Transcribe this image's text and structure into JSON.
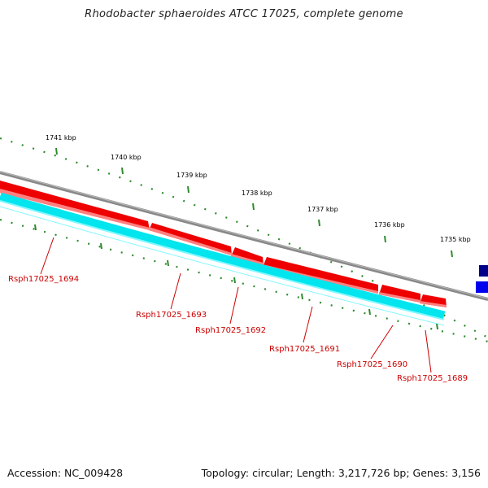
{
  "title": "Rhodobacter sphaeroides ATCC 17025, complete genome",
  "footer": {
    "accession": "Accession: NC_009428",
    "summary": "Topology: circular; Length: 3,217,726 bp; Genes: 3,156"
  },
  "scale_labels": [
    "1741 kbp",
    "1740 kbp",
    "1739 kbp",
    "1738 kbp",
    "1737 kbp",
    "1736 kbp",
    "1735 kbp"
  ],
  "genes": [
    {
      "label": "Rsph17025_1694",
      "strand": "minus"
    },
    {
      "label": "Rsph17025_1693",
      "strand": "minus"
    },
    {
      "label": "Rsph17025_1692",
      "strand": "minus"
    },
    {
      "label": "Rsph17025_1691",
      "strand": "minus"
    },
    {
      "label": "Rsph17025_1690",
      "strand": "minus"
    },
    {
      "label": "Rsph17025_1689",
      "strand": "minus"
    }
  ],
  "colors": {
    "cds": "#ee0000",
    "cds_shade": "#ff8080",
    "feature_track": "#00e5ee",
    "backbone": "#888888",
    "ticks": "#2e8b2e",
    "label": "#cc0000",
    "plus_strand_gene": "#0000cc",
    "plus_strand_gene_dark": "#000088"
  }
}
